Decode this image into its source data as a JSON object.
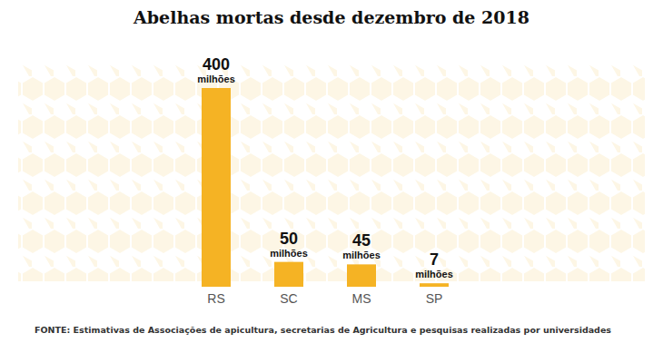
{
  "chart_data": {
    "type": "bar",
    "title": "Abelhas mortas desde dezembro de 2018",
    "categories": [
      "RS",
      "SC",
      "MS",
      "SP"
    ],
    "values": [
      400,
      50,
      45,
      7
    ],
    "value_labels": [
      "400 milhões",
      "50 milhões",
      "45 milhões",
      "7 milhões"
    ],
    "color": "#f5b324",
    "ylim": [
      0,
      400
    ],
    "yticks": [],
    "grid": false,
    "data_labels": true,
    "tick_labels": "x",
    "source": "FONTE: Estimativas de Associações de apicultura, secretarias de Agricultura e pesquisas realizadas por universidades"
  }
}
